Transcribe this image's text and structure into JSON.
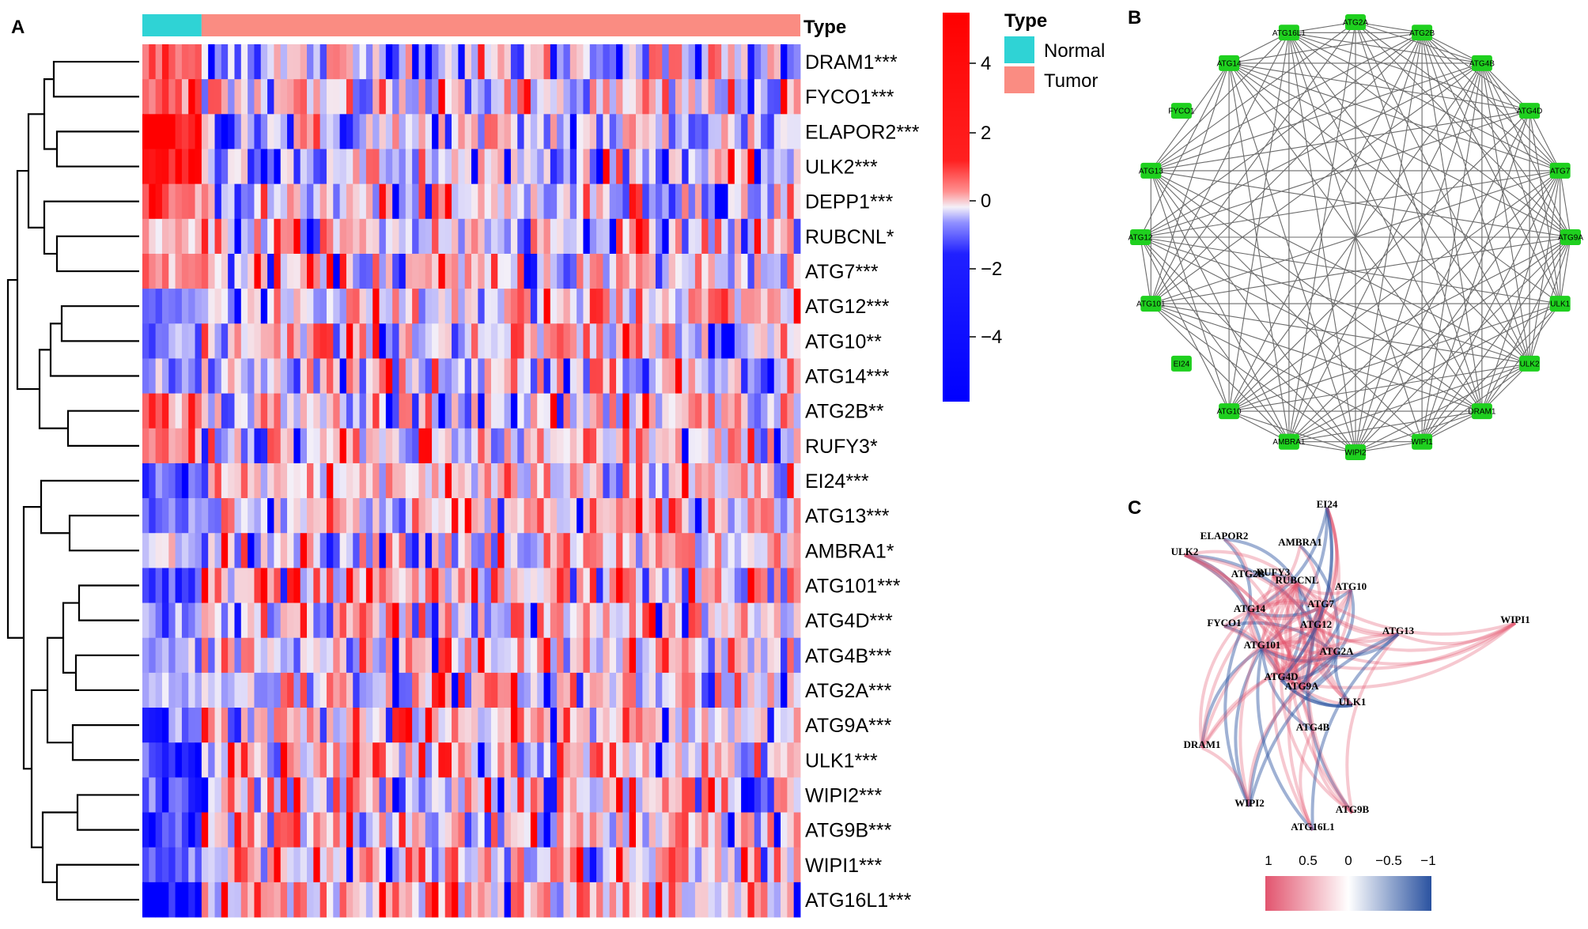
{
  "panels": {
    "a": "A",
    "b": "B",
    "c": "C"
  },
  "heatmap": {
    "type_header": "Type",
    "sample_groups": [
      {
        "name": "Normal",
        "color": "#2fd3d5",
        "count": 9
      },
      {
        "name": "Tumor",
        "color": "#fa8c82",
        "count": 91
      }
    ],
    "legend": {
      "title": "Type",
      "items": [
        {
          "label": "Normal",
          "color": "#2fd3d5"
        },
        {
          "label": "Tumor",
          "color": "#fa8c82"
        }
      ]
    },
    "colorbar": {
      "ticks": [
        "4",
        "2",
        "0",
        "−2",
        "−4"
      ],
      "colors": {
        "high": "#ff0000",
        "mid": "#f4f0f8",
        "low": "#0000ff"
      }
    },
    "genes": [
      {
        "label": "DRAM1***",
        "normal_bias": 1.2,
        "tumor_bias": -0.3
      },
      {
        "label": "FYCO1***",
        "normal_bias": 1.6,
        "tumor_bias": -0.2
      },
      {
        "label": "ELAPOR2***",
        "normal_bias": 2.3,
        "tumor_bias": -0.35
      },
      {
        "label": "ULK2***",
        "normal_bias": 2.2,
        "tumor_bias": -0.3
      },
      {
        "label": "DEPP1***",
        "normal_bias": 1.4,
        "tumor_bias": -0.2
      },
      {
        "label": "RUBCNL*",
        "normal_bias": 0.8,
        "tumor_bias": 0.0
      },
      {
        "label": "ATG7***",
        "normal_bias": 1.0,
        "tumor_bias": 0.0
      },
      {
        "label": "ATG12***",
        "normal_bias": -1.2,
        "tumor_bias": 0.1
      },
      {
        "label": "ATG10**",
        "normal_bias": -0.9,
        "tumor_bias": 0.1
      },
      {
        "label": "ATG14***",
        "normal_bias": -1.1,
        "tumor_bias": 0.1
      },
      {
        "label": "ATG2B**",
        "normal_bias": 1.2,
        "tumor_bias": -0.1
      },
      {
        "label": "RUFY3*",
        "normal_bias": 1.0,
        "tumor_bias": -0.1
      },
      {
        "label": "EI24***",
        "normal_bias": -1.6,
        "tumor_bias": 0.3
      },
      {
        "label": "ATG13***",
        "normal_bias": -1.0,
        "tumor_bias": 0.2
      },
      {
        "label": "AMBRA1*",
        "normal_bias": 0.1,
        "tumor_bias": 0.1
      },
      {
        "label": "ATG101***",
        "normal_bias": -1.5,
        "tumor_bias": 0.2
      },
      {
        "label": "ATG4D***",
        "normal_bias": -1.1,
        "tumor_bias": 0.1
      },
      {
        "label": "ATG4B***",
        "normal_bias": -1.0,
        "tumor_bias": 0.1
      },
      {
        "label": "ATG2A***",
        "normal_bias": -0.6,
        "tumor_bias": 0.1
      },
      {
        "label": "ATG9A***",
        "normal_bias": -1.2,
        "tumor_bias": 0.2
      },
      {
        "label": "ULK1***",
        "normal_bias": -1.4,
        "tumor_bias": 0.2
      },
      {
        "label": "WIPI2***",
        "normal_bias": -1.3,
        "tumor_bias": 0.2
      },
      {
        "label": "ATG9B***",
        "normal_bias": -1.5,
        "tumor_bias": 0.2
      },
      {
        "label": "WIPI1***",
        "normal_bias": -1.3,
        "tumor_bias": 0.1
      },
      {
        "label": "ATG16L1***",
        "normal_bias": -2.4,
        "tumor_bias": 0.4
      }
    ]
  },
  "network": {
    "node_color": "#1fd01f",
    "edge_color": "#6b6b6b",
    "nodes": [
      "ATG2A",
      "ATG2B",
      "ATG4B",
      "ATG4D",
      "ATG7",
      "ATG9A",
      "ULK1",
      "ULK2",
      "DRAM1",
      "WIPI1",
      "WIPI2",
      "AMBRA1",
      "ATG10",
      "EI24",
      "ATG101",
      "ATG12",
      "ATG13",
      "FYCO1",
      "ATG14",
      "ATG16L1"
    ],
    "isolated": [
      "FYCO1",
      "EI24"
    ]
  },
  "correlation": {
    "legend_ticks": [
      "1",
      "0.5",
      "0",
      "−0.5",
      "−1"
    ],
    "colors": {
      "positive": "#e2546e",
      "neutral": "#ffffff",
      "negative": "#2a52a0"
    },
    "nodes": [
      "EI24",
      "ELAPOR2",
      "AMBRA1",
      "ULK2",
      "ATG2B",
      "RUFY3",
      "RUBCNL",
      "ATG10",
      "ATG14",
      "ATG7",
      "FYCO1",
      "ATG12",
      "WIPI1",
      "ATG13",
      "ATG101",
      "ATG2A",
      "ATG4D",
      "ATG9A",
      "ULK1",
      "ATG4B",
      "DRAM1",
      "WIPI2",
      "ATG9B",
      "ATG16L1"
    ]
  }
}
